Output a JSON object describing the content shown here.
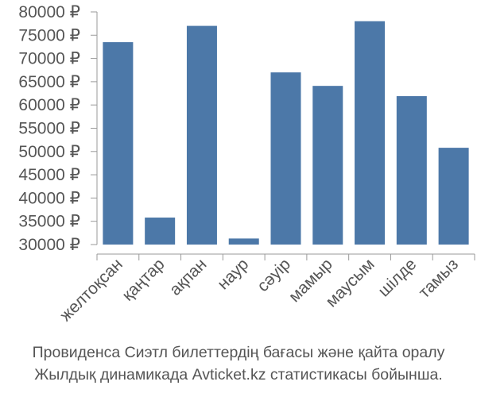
{
  "chart_data": {
    "type": "bar",
    "categories": [
      "желтоқсан",
      "қаңтар",
      "ақпан",
      "наур",
      "сәуір",
      "мамыр",
      "маусым",
      "шілде",
      "тамыз"
    ],
    "values": [
      73500,
      35800,
      77000,
      31300,
      67000,
      64100,
      78000,
      61900,
      50800
    ],
    "ylim": [
      30000,
      80000
    ],
    "yticks": [
      30000,
      35000,
      40000,
      45000,
      50000,
      55000,
      60000,
      65000,
      70000,
      75000,
      80000
    ],
    "currency_suffix": " ₽",
    "bar_color": "#4c78a8",
    "grid": false
  },
  "caption": {
    "line1": "Провиденса Сиэтл билеттердің бағасы және қайта оралу",
    "line2": "Жылдық динамикада Avticket.kz статистикасы бойынша."
  }
}
